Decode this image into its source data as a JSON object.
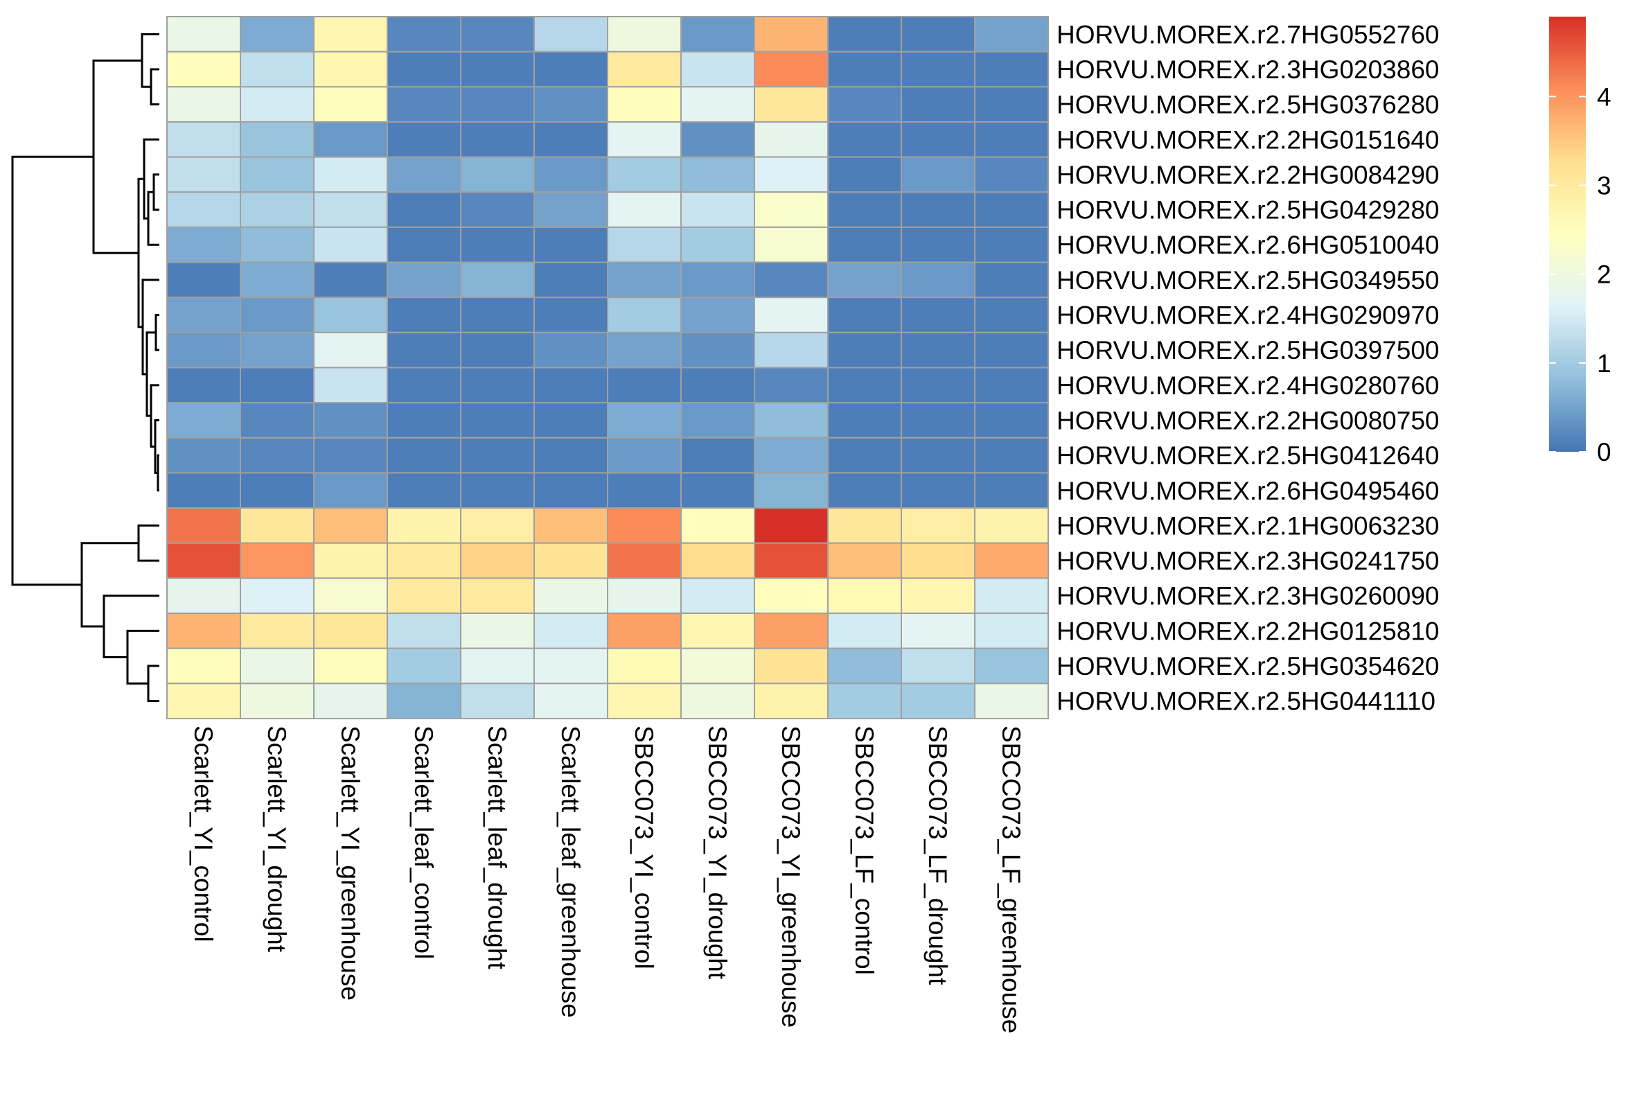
{
  "chart_data": {
    "type": "heatmap",
    "title": "",
    "xlabel": "",
    "ylabel": "",
    "columns": [
      "Scarlett_YI_control",
      "Scarlett_YI_drought",
      "Scarlett_YI_greenhouse",
      "Scarlett_leaf_control",
      "Scarlett_leaf_drought",
      "Scarlett_leaf_greenhouse",
      "SBCC073_YI_control",
      "SBCC073_YI_drought",
      "SBCC073_YI_greenhouse",
      "SBCC073_LF_control",
      "SBCC073_LF_drought",
      "SBCC073_LF_greenhouse"
    ],
    "rows": [
      "HORVU.MOREX.r2.7HG0552760",
      "HORVU.MOREX.r2.3HG0203860",
      "HORVU.MOREX.r2.5HG0376280",
      "HORVU.MOREX.r2.2HG0151640",
      "HORVU.MOREX.r2.2HG0084290",
      "HORVU.MOREX.r2.5HG0429280",
      "HORVU.MOREX.r2.6HG0510040",
      "HORVU.MOREX.r2.5HG0349550",
      "HORVU.MOREX.r2.4HG0290970",
      "HORVU.MOREX.r2.5HG0397500",
      "HORVU.MOREX.r2.4HG0280760",
      "HORVU.MOREX.r2.2HG0080750",
      "HORVU.MOREX.r2.5HG0412640",
      "HORVU.MOREX.r2.6HG0495460",
      "HORVU.MOREX.r2.1HG0063230",
      "HORVU.MOREX.r2.3HG0241750",
      "HORVU.MOREX.r2.3HG0260090",
      "HORVU.MOREX.r2.2HG0125810",
      "HORVU.MOREX.r2.5HG0354620",
      "HORVU.MOREX.r2.5HG0441110"
    ],
    "values": [
      [
        1.9,
        0.6,
        2.7,
        0.2,
        0.2,
        1.2,
        2.0,
        0.4,
        3.7,
        0.1,
        0.1,
        0.5
      ],
      [
        2.5,
        1.3,
        2.7,
        0.1,
        0.1,
        0.1,
        3.0,
        1.4,
        4.1,
        0.1,
        0.1,
        0.1
      ],
      [
        1.9,
        1.5,
        2.5,
        0.2,
        0.2,
        0.3,
        2.5,
        1.7,
        3.1,
        0.2,
        0.1,
        0.1
      ],
      [
        1.3,
        0.9,
        0.4,
        0.1,
        0.1,
        0.1,
        1.7,
        0.3,
        1.8,
        0.1,
        0.1,
        0.1
      ],
      [
        1.3,
        0.9,
        1.5,
        0.5,
        0.7,
        0.4,
        1.0,
        0.8,
        1.6,
        0.1,
        0.4,
        0.2
      ],
      [
        1.2,
        1.1,
        1.3,
        0.1,
        0.2,
        0.5,
        1.7,
        1.4,
        2.3,
        0.1,
        0.1,
        0.1
      ],
      [
        0.6,
        0.8,
        1.4,
        0.1,
        0.1,
        0.1,
        1.2,
        1.0,
        2.2,
        0.1,
        0.1,
        0.1
      ],
      [
        0.1,
        0.6,
        0.1,
        0.5,
        0.7,
        0.1,
        0.5,
        0.4,
        0.2,
        0.5,
        0.4,
        0.1
      ],
      [
        0.5,
        0.4,
        0.9,
        0.1,
        0.1,
        0.1,
        1.0,
        0.5,
        1.7,
        0.1,
        0.1,
        0.1
      ],
      [
        0.4,
        0.5,
        1.7,
        0.1,
        0.1,
        0.3,
        0.5,
        0.3,
        1.2,
        0.1,
        0.1,
        0.1
      ],
      [
        0.1,
        0.1,
        1.4,
        0.1,
        0.1,
        0.1,
        0.1,
        0.1,
        0.2,
        0.1,
        0.1,
        0.1
      ],
      [
        0.6,
        0.2,
        0.3,
        0.1,
        0.1,
        0.1,
        0.6,
        0.4,
        0.8,
        0.1,
        0.1,
        0.1
      ],
      [
        0.3,
        0.2,
        0.2,
        0.1,
        0.1,
        0.1,
        0.4,
        0.1,
        0.6,
        0.1,
        0.1,
        0.1
      ],
      [
        0.1,
        0.1,
        0.4,
        0.1,
        0.1,
        0.1,
        0.1,
        0.1,
        0.7,
        0.1,
        0.1,
        0.1
      ],
      [
        4.3,
        3.1,
        3.6,
        2.8,
        2.9,
        3.6,
        4.1,
        2.5,
        4.9,
        3.1,
        2.9,
        2.8
      ],
      [
        4.6,
        4.0,
        2.8,
        3.0,
        3.4,
        3.2,
        4.3,
        3.3,
        4.6,
        3.6,
        3.3,
        3.8
      ],
      [
        1.8,
        1.6,
        2.2,
        3.0,
        3.0,
        1.9,
        1.8,
        1.5,
        2.5,
        2.6,
        2.7,
        1.5
      ],
      [
        3.7,
        3.0,
        3.1,
        1.3,
        1.9,
        1.5,
        3.9,
        2.7,
        3.9,
        1.5,
        1.7,
        1.5
      ],
      [
        2.5,
        1.9,
        2.5,
        1.0,
        1.7,
        1.7,
        2.6,
        2.1,
        3.2,
        0.8,
        1.3,
        0.9
      ],
      [
        2.7,
        2.0,
        1.8,
        0.7,
        1.3,
        1.7,
        2.7,
        2.0,
        2.8,
        1.0,
        1.0,
        1.9
      ]
    ],
    "color_scale": {
      "min": 0,
      "max": 4.9,
      "colors": [
        "#4575b4",
        "#91bfdb",
        "#e0f3f8",
        "#ffffbf",
        "#fee090",
        "#fc8d59",
        "#d73027"
      ]
    },
    "legend": {
      "placement": "right",
      "ticks": [
        "0",
        "1",
        "2",
        "3",
        "4"
      ]
    },
    "row_dendrogram": true,
    "grid_color": "#a0a0a0"
  }
}
